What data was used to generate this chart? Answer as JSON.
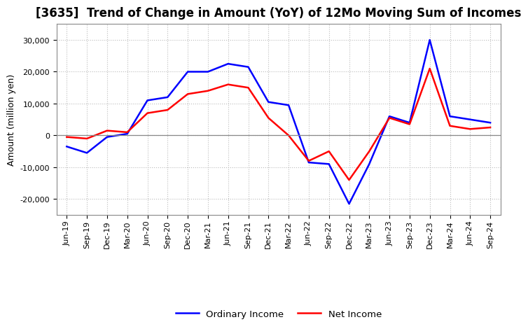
{
  "title": "[3635]  Trend of Change in Amount (YoY) of 12Mo Moving Sum of Incomes",
  "ylabel": "Amount (million yen)",
  "x_labels": [
    "Jun-19",
    "Sep-19",
    "Dec-19",
    "Mar-20",
    "Jun-20",
    "Sep-20",
    "Dec-20",
    "Mar-21",
    "Jun-21",
    "Sep-21",
    "Dec-21",
    "Mar-22",
    "Jun-22",
    "Sep-22",
    "Dec-22",
    "Mar-23",
    "Jun-23",
    "Sep-23",
    "Dec-23",
    "Mar-24",
    "Jun-24",
    "Sep-24"
  ],
  "ordinary_income": [
    -3500,
    -5500,
    -500,
    500,
    11000,
    12000,
    20000,
    20000,
    22500,
    21500,
    10500,
    9500,
    -8500,
    -9000,
    -21500,
    -9000,
    6000,
    4000,
    30000,
    6000,
    5000,
    4000
  ],
  "net_income": [
    -500,
    -1000,
    1500,
    1000,
    7000,
    8000,
    13000,
    14000,
    16000,
    15000,
    5500,
    0,
    -8000,
    -5000,
    -14000,
    -5000,
    5500,
    3500,
    21000,
    3000,
    2000,
    2500
  ],
  "ordinary_income_color": "#0000FF",
  "net_income_color": "#FF0000",
  "ylim": [
    -25000,
    35000
  ],
  "yticks": [
    -20000,
    -10000,
    0,
    10000,
    20000,
    30000
  ],
  "background_color": "#FFFFFF",
  "title_fontsize": 12,
  "axis_label_fontsize": 9,
  "tick_fontsize": 8,
  "legend_fontsize": 9.5,
  "line_width": 1.8
}
